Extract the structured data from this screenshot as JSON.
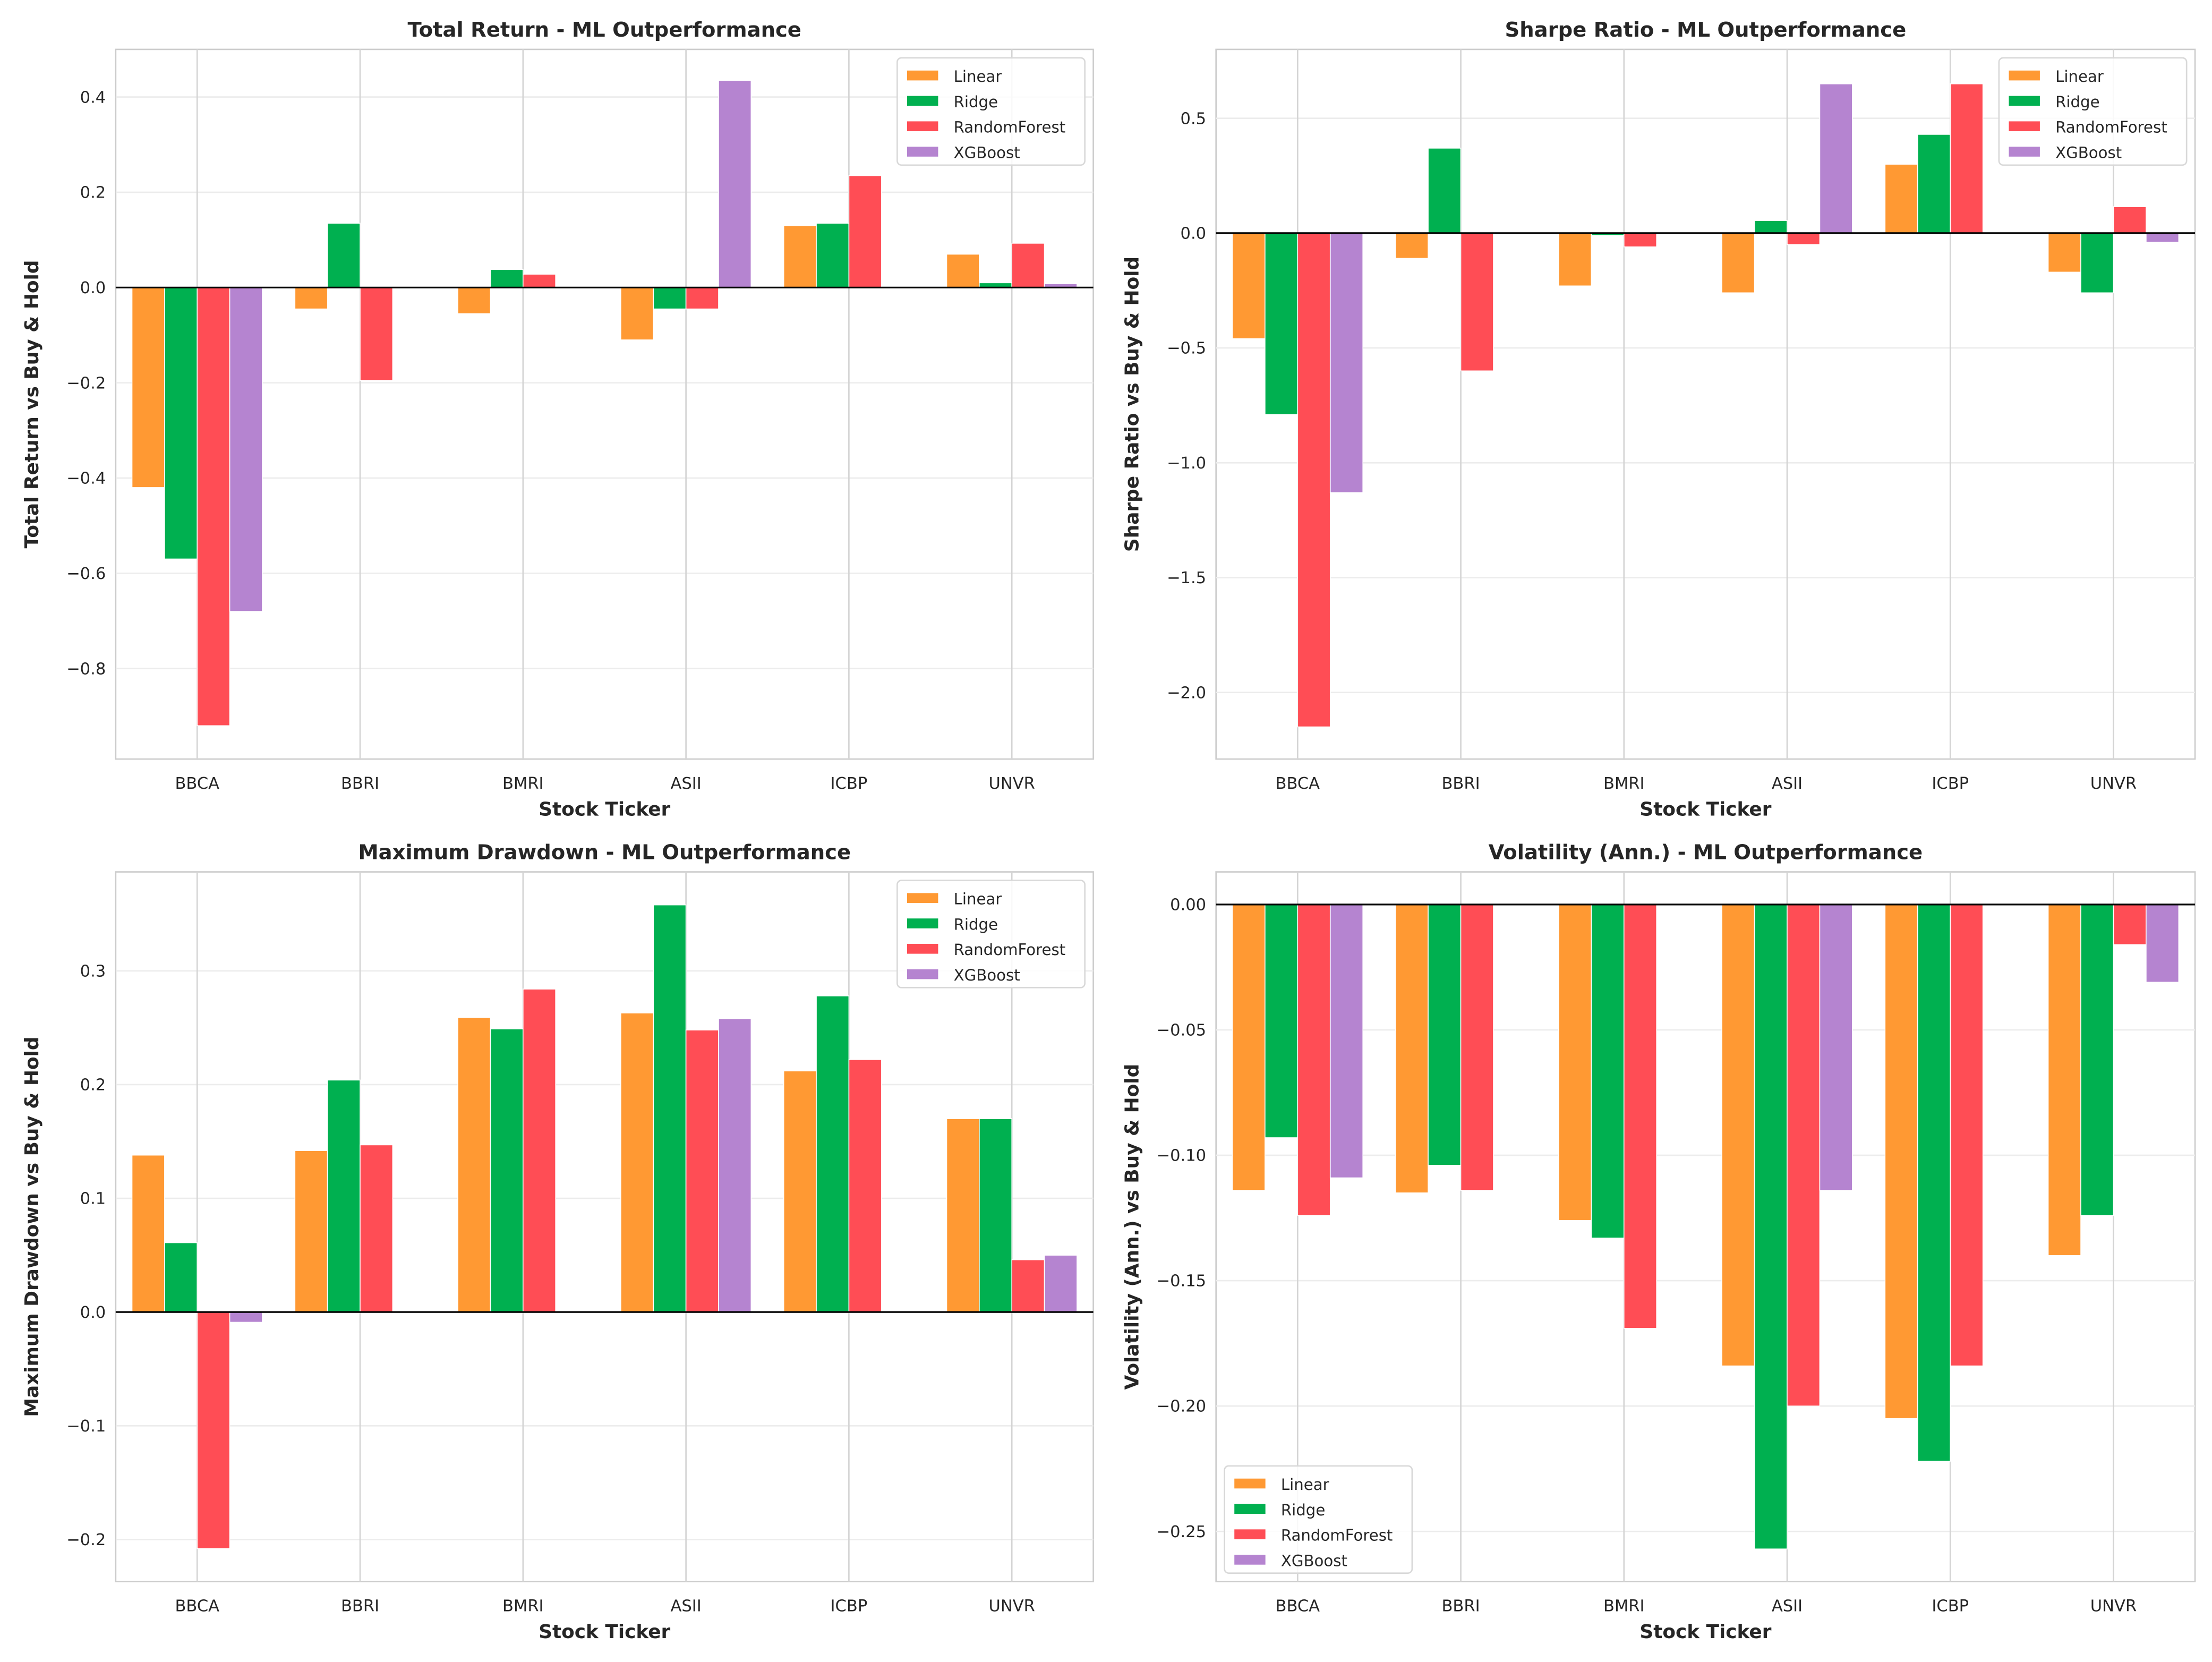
{
  "colors": {
    "Linear": "#FF9933",
    "Ridge": "#00B050",
    "RandomForest": "#FF4D55",
    "XGBoost": "#B584D0"
  },
  "chart_data": [
    {
      "type": "bar",
      "title": "Total Return - ML Outperformance",
      "xlabel": "Stock Ticker",
      "ylabel": "Total Return vs Buy & Hold",
      "categories": [
        "BBCA",
        "BBRI",
        "BMRI",
        "ASII",
        "ICBP",
        "UNVR"
      ],
      "ylim": [
        -0.99,
        0.5
      ],
      "yticks": [
        -0.8,
        -0.6,
        -0.4,
        -0.2,
        0.0,
        0.2,
        0.4
      ],
      "ytick_decimals": 1,
      "legend": "top-right",
      "grid": true,
      "series": [
        {
          "name": "Linear",
          "values": [
            -0.42,
            -0.045,
            -0.055,
            -0.11,
            0.13,
            0.07
          ]
        },
        {
          "name": "Ridge",
          "values": [
            -0.57,
            0.135,
            0.038,
            -0.045,
            0.135,
            0.01
          ]
        },
        {
          "name": "RandomForest",
          "values": [
            -0.92,
            -0.195,
            0.028,
            -0.045,
            0.235,
            0.093
          ]
        },
        {
          "name": "XGBoost",
          "values": [
            -0.68,
            0.002,
            0.0,
            0.435,
            0.0,
            0.008
          ]
        }
      ]
    },
    {
      "type": "bar",
      "title": "Sharpe Ratio - ML Outperformance",
      "xlabel": "Stock Ticker",
      "ylabel": "Sharpe Ratio vs Buy & Hold",
      "categories": [
        "BBCA",
        "BBRI",
        "BMRI",
        "ASII",
        "ICBP",
        "UNVR"
      ],
      "ylim": [
        -2.29,
        0.8
      ],
      "yticks": [
        -2.0,
        -1.5,
        -1.0,
        -0.5,
        0.0,
        0.5
      ],
      "ytick_decimals": 1,
      "legend": "top-right",
      "grid": true,
      "series": [
        {
          "name": "Linear",
          "values": [
            -0.46,
            -0.11,
            -0.23,
            -0.26,
            0.3,
            -0.17
          ]
        },
        {
          "name": "Ridge",
          "values": [
            -0.79,
            0.37,
            -0.01,
            0.055,
            0.43,
            -0.26
          ]
        },
        {
          "name": "RandomForest",
          "values": [
            -2.15,
            -0.6,
            -0.06,
            -0.05,
            0.65,
            0.115
          ]
        },
        {
          "name": "XGBoost",
          "values": [
            -1.13,
            0.0,
            0.0,
            0.65,
            0.0,
            -0.04
          ]
        }
      ]
    },
    {
      "type": "bar",
      "title": "Maximum Drawdown - ML Outperformance",
      "xlabel": "Stock Ticker",
      "ylabel": "Maximum Drawdown vs Buy & Hold",
      "categories": [
        "BBCA",
        "BBRI",
        "BMRI",
        "ASII",
        "ICBP",
        "UNVR"
      ],
      "ylim": [
        -0.237,
        0.387
      ],
      "yticks": [
        -0.2,
        -0.1,
        0.0,
        0.1,
        0.2,
        0.3
      ],
      "ytick_decimals": 1,
      "legend": "top-right",
      "grid": true,
      "series": [
        {
          "name": "Linear",
          "values": [
            0.138,
            0.142,
            0.259,
            0.263,
            0.212,
            0.17
          ]
        },
        {
          "name": "Ridge",
          "values": [
            0.061,
            0.204,
            0.249,
            0.358,
            0.278,
            0.17
          ]
        },
        {
          "name": "RandomForest",
          "values": [
            -0.208,
            0.147,
            0.284,
            0.248,
            0.222,
            0.046
          ]
        },
        {
          "name": "XGBoost",
          "values": [
            -0.009,
            0.0,
            0.0,
            0.258,
            0.0,
            0.05
          ]
        }
      ]
    },
    {
      "type": "bar",
      "title": "Volatility (Ann.) - ML Outperformance",
      "xlabel": "Stock Ticker",
      "ylabel": "Volatility (Ann.) vs Buy & Hold",
      "categories": [
        "BBCA",
        "BBRI",
        "BMRI",
        "ASII",
        "ICBP",
        "UNVR"
      ],
      "ylim": [
        -0.27,
        0.013
      ],
      "yticks": [
        -0.25,
        -0.2,
        -0.15,
        -0.1,
        -0.05,
        0.0
      ],
      "ytick_decimals": 2,
      "legend": "bottom-left",
      "grid": true,
      "series": [
        {
          "name": "Linear",
          "values": [
            -0.114,
            -0.115,
            -0.126,
            -0.184,
            -0.205,
            -0.14
          ]
        },
        {
          "name": "Ridge",
          "values": [
            -0.093,
            -0.104,
            -0.133,
            -0.257,
            -0.222,
            -0.124
          ]
        },
        {
          "name": "RandomForest",
          "values": [
            -0.124,
            -0.114,
            -0.169,
            -0.2,
            -0.184,
            -0.016
          ]
        },
        {
          "name": "XGBoost",
          "values": [
            -0.109,
            0.0,
            0.0,
            -0.114,
            0.0,
            -0.031
          ]
        }
      ]
    }
  ]
}
